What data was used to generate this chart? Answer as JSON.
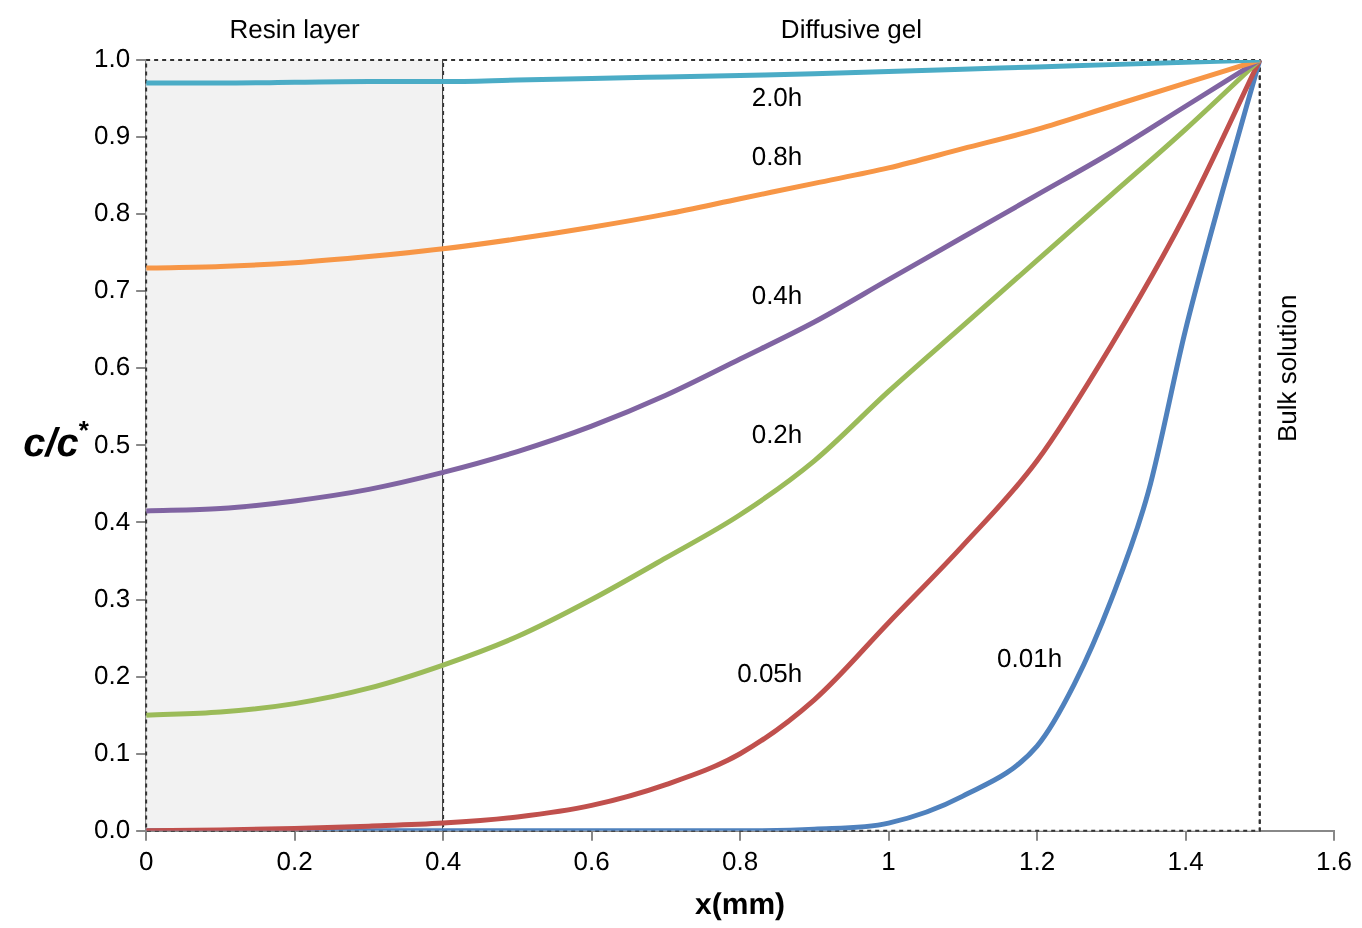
{
  "chart_data": {
    "type": "line",
    "xlabel": "x(mm)",
    "ylabel": "c/c$^{*}$",
    "x": [
      0,
      0.1,
      0.2,
      0.3,
      0.4,
      0.5,
      0.6,
      0.7,
      0.8,
      0.9,
      1.0,
      1.1,
      1.2,
      1.3,
      1.4,
      1.5
    ],
    "series": [
      {
        "name": "2.0h",
        "color": "#4bacc6",
        "values": [
          0.97,
          0.97,
          0.971,
          0.972,
          0.972,
          0.974,
          0.976,
          0.978,
          0.98,
          0.982,
          0.985,
          0.988,
          0.991,
          0.994,
          0.997,
          1.0
        ]
      },
      {
        "name": "0.8h",
        "color": "#f79646",
        "values": [
          0.73,
          0.732,
          0.737,
          0.745,
          0.755,
          0.768,
          0.783,
          0.8,
          0.82,
          0.84,
          0.86,
          0.885,
          0.91,
          0.94,
          0.97,
          1.0
        ]
      },
      {
        "name": "0.4h",
        "color": "#8064a2",
        "values": [
          0.415,
          0.418,
          0.428,
          0.443,
          0.465,
          0.492,
          0.525,
          0.565,
          0.612,
          0.66,
          0.715,
          0.77,
          0.825,
          0.88,
          0.94,
          1.0
        ]
      },
      {
        "name": "0.2h",
        "color": "#9bbb59",
        "values": [
          0.15,
          0.154,
          0.165,
          0.185,
          0.215,
          0.252,
          0.3,
          0.354,
          0.41,
          0.48,
          0.57,
          0.655,
          0.74,
          0.825,
          0.91,
          1.0
        ]
      },
      {
        "name": "0.05h",
        "color": "#c0504d",
        "values": [
          0.0,
          0.001,
          0.003,
          0.006,
          0.01,
          0.018,
          0.033,
          0.06,
          0.1,
          0.17,
          0.27,
          0.37,
          0.48,
          0.63,
          0.8,
          1.0
        ]
      },
      {
        "name": "0.01h",
        "color": "#4f81bd",
        "x": [
          0,
          0.2,
          0.4,
          0.6,
          0.8,
          0.9,
          1.0,
          1.1,
          1.2,
          1.25,
          1.3,
          1.35,
          1.4,
          1.45,
          1.5
        ],
        "values": [
          0,
          0,
          0,
          0,
          0,
          0.002,
          0.01,
          0.045,
          0.11,
          0.19,
          0.3,
          0.44,
          0.65,
          0.83,
          1.0
        ]
      }
    ],
    "xlim": [
      0,
      1.6
    ],
    "xticks": [
      0,
      0.2,
      0.4,
      0.6,
      0.8,
      1,
      1.2,
      1.4,
      1.6
    ],
    "ylim": [
      0,
      1
    ],
    "yticks": [
      {
        "value": 0,
        "label": "0.0"
      },
      {
        "value": 0.1,
        "label": "0.1"
      },
      {
        "value": 0.2,
        "label": "0.2"
      },
      {
        "value": 0.3,
        "label": "0.3"
      },
      {
        "value": 0.4,
        "label": "0.4"
      },
      {
        "value": 0.5,
        "label": "0.5"
      },
      {
        "value": 0.6,
        "label": "0.6"
      },
      {
        "value": 0.7,
        "label": "0.7"
      },
      {
        "value": 0.8,
        "label": "0.8"
      },
      {
        "value": 0.9,
        "label": "0.9"
      },
      {
        "value": 1,
        "label": "1.0"
      }
    ],
    "bands": [
      {
        "axis": "x",
        "from": 0,
        "to": 0.4,
        "label": "Resin layer",
        "color": "#f2f2f2"
      },
      {
        "axis": "x",
        "from": 0.4,
        "to": 1.5,
        "label": "Diffusive gel",
        "color": "#ffffff"
      }
    ],
    "ref_lines": [
      {
        "axis": "x",
        "value": 1.5,
        "label": "Bulk solution",
        "line_style": "dotted"
      }
    ],
    "grid": false,
    "legend": false,
    "marker": "none",
    "line_style": "solid"
  }
}
